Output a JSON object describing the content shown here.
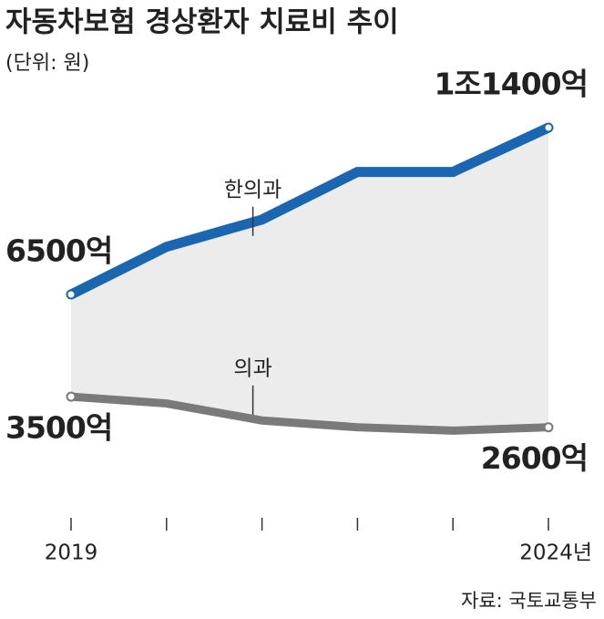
{
  "chart_data": {
    "type": "line",
    "title": "자동차보험 경상환자 치료비 추이",
    "subtitle": "(단위: 원)",
    "source": "자료: 국토교통부",
    "categories": [
      "2019",
      null,
      null,
      null,
      null,
      "2024년"
    ],
    "series": [
      {
        "name": "한의과",
        "color": "#1a66b0",
        "label_color": "#1a66b0",
        "values": [
          6500,
          7900,
          8700,
          10100,
          10100,
          11400
        ],
        "value_labels": [
          "6500억",
          null,
          null,
          null,
          null,
          "1조1400억"
        ]
      },
      {
        "name": "의과",
        "color": "#7a7a7a",
        "label_color": "#222222",
        "values": [
          3500,
          3300,
          2800,
          2600,
          2500,
          2600
        ],
        "value_labels": [
          "3500억",
          null,
          null,
          null,
          null,
          "2600억"
        ]
      }
    ],
    "ylim": [
      0,
      12000
    ],
    "area_between": true
  }
}
